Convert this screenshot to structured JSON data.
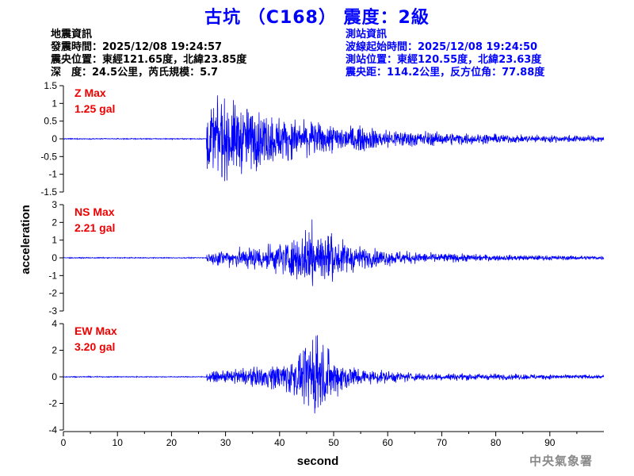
{
  "title": "古坑 （C168） 震度：2級",
  "earthquake_info": {
    "heading": "地震資訊",
    "time": "發震時間：2025/12/08 19:24:57",
    "location": "震央位置：東經121.65度，北緯23.85度",
    "depth_mag": "深　度：24.5公里，芮氏規模：5.7"
  },
  "station_info": {
    "heading": "測站資訊",
    "wave_start": "波線起始時間：2025/12/08 19:24:50",
    "location": "測站位置：東經120.55度，北緯23.63度",
    "distance": "震央距：114.2公里，反方位角：77.88度"
  },
  "agency": "中央氣象署",
  "colors": {
    "trace": "#0000ff",
    "max_label": "#ee0000",
    "title": "#0000ff",
    "axis": "#000000"
  },
  "chart_data": [
    {
      "type": "line",
      "channel": "Z",
      "label": "Z Max",
      "max_text": "1.25 gal",
      "max_value": 1.25,
      "ylim": [
        -1.5,
        1.5
      ],
      "yticks": [
        1.5,
        1,
        0.5,
        0,
        -0.5,
        -1,
        -1.5
      ],
      "ytick_labels": [
        "1.5",
        "1",
        "0.5",
        "0",
        "-0.5",
        "-1",
        "-1.5"
      ],
      "onset": 26.5,
      "envelope": [
        [
          26.5,
          0.9
        ],
        [
          28.5,
          1.25
        ],
        [
          32,
          1.1
        ],
        [
          36,
          0.9
        ],
        [
          42,
          0.6
        ],
        [
          50,
          0.45
        ],
        [
          60,
          0.3
        ],
        [
          70,
          0.2
        ],
        [
          85,
          0.12
        ],
        [
          100,
          0.1
        ]
      ]
    },
    {
      "type": "line",
      "channel": "NS",
      "label": "NS Max",
      "max_text": "2.21 gal",
      "max_value": 2.21,
      "ylim": [
        -3,
        3
      ],
      "yticks": [
        3,
        2,
        1,
        0,
        -1,
        -2,
        -3
      ],
      "ytick_labels": [
        "3",
        "2",
        "1",
        "0",
        "-1",
        "-2",
        "-3"
      ],
      "onset": 26.5,
      "envelope": [
        [
          26.5,
          0.3
        ],
        [
          30,
          0.55
        ],
        [
          38,
          0.8
        ],
        [
          44,
          1.4
        ],
        [
          46,
          2.21
        ],
        [
          50,
          1.3
        ],
        [
          56,
          0.6
        ],
        [
          65,
          0.35
        ],
        [
          80,
          0.18
        ],
        [
          100,
          0.12
        ]
      ]
    },
    {
      "type": "line",
      "channel": "EW",
      "label": "EW Max",
      "max_text": "3.20 gal",
      "max_value": 3.2,
      "ylim": [
        -4,
        4
      ],
      "yticks": [
        4,
        2,
        0,
        -2,
        -4
      ],
      "ytick_labels": [
        "4",
        "2",
        "0",
        "-2",
        "-4"
      ],
      "onset": 26.5,
      "envelope": [
        [
          26.5,
          0.35
        ],
        [
          30,
          0.5
        ],
        [
          38,
          0.9
        ],
        [
          44,
          1.8
        ],
        [
          47,
          3.2
        ],
        [
          50,
          1.6
        ],
        [
          56,
          0.6
        ],
        [
          65,
          0.35
        ],
        [
          80,
          0.25
        ],
        [
          100,
          0.15
        ]
      ]
    }
  ],
  "x_axis": {
    "label": "second",
    "xlim": [
      0,
      100
    ],
    "ticks": [
      0,
      10,
      20,
      30,
      40,
      50,
      60,
      70,
      80,
      90
    ],
    "tick_labels": [
      "0",
      "10",
      "20",
      "30",
      "40",
      "50",
      "60",
      "70",
      "80",
      "90"
    ]
  },
  "y_axis_label": "acceleration"
}
